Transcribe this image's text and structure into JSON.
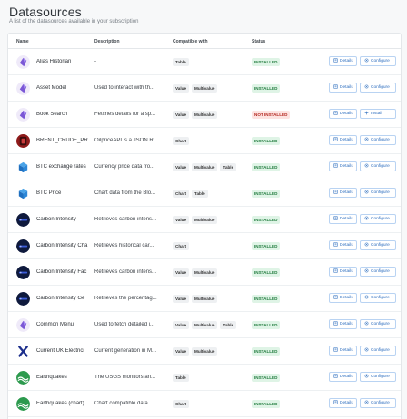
{
  "page": {
    "title": "Datasources",
    "subtitle": "A list of the datasources available in your subscription"
  },
  "columns": {
    "name": "Name",
    "description": "Description",
    "compatible": "Compatible with",
    "status": "Status"
  },
  "buttons": {
    "details": "Details",
    "configure": "Configure",
    "install": "Install"
  },
  "rows": [
    {
      "name": "Alias Historian",
      "description": "-",
      "compatible": [
        "Table"
      ],
      "status": "INSTALLED",
      "installed": true,
      "logo": "purple-gem-icon"
    },
    {
      "name": "Asset Model",
      "description": "Used to interact with th...",
      "compatible": [
        "Value",
        "Multivalue"
      ],
      "status": "INSTALLED",
      "installed": true,
      "logo": "purple-gem-icon"
    },
    {
      "name": "Book Search",
      "description": "Fetches details for a sp...",
      "compatible": [
        "Value",
        "Multivalue"
      ],
      "status": "NOT INSTALLED",
      "installed": false,
      "logo": "purple-gem-icon"
    },
    {
      "name": "BRENT_CRUDE_PRI",
      "description": "OilpriceAPI is a JSON R...",
      "compatible": [
        "Chart"
      ],
      "status": "INSTALLED",
      "installed": true,
      "logo": "oilprice-icon"
    },
    {
      "name": "BTC exchange rates",
      "description": "Currency price data fro...",
      "compatible": [
        "Value",
        "Multivalue",
        "Table"
      ],
      "status": "INSTALLED",
      "installed": true,
      "logo": "blue-cube-icon"
    },
    {
      "name": "BTC Price",
      "description": "Chart data from the Blo...",
      "compatible": [
        "Chart",
        "Table"
      ],
      "status": "INSTALLED",
      "installed": true,
      "logo": "blue-cube-icon"
    },
    {
      "name": "Carbon Intensity",
      "description": "Retrieves carbon intens...",
      "compatible": [
        "Value",
        "Multivalue"
      ],
      "status": "INSTALLED",
      "installed": true,
      "logo": "carbon-intensity-icon"
    },
    {
      "name": "Carbon Intensity Cha",
      "description": "Retrieves historical car...",
      "compatible": [
        "Chart"
      ],
      "status": "INSTALLED",
      "installed": true,
      "logo": "carbon-intensity-icon"
    },
    {
      "name": "Carbon Intensity Fac",
      "description": "Retrieves carbon intens...",
      "compatible": [
        "Value",
        "Multivalue"
      ],
      "status": "INSTALLED",
      "installed": true,
      "logo": "carbon-intensity-icon"
    },
    {
      "name": "Carbon Intensity Ge",
      "description": "Retrieves the percentag...",
      "compatible": [
        "Value",
        "Multivalue"
      ],
      "status": "INSTALLED",
      "installed": true,
      "logo": "carbon-intensity-icon"
    },
    {
      "name": "Common Menu",
      "description": "Used to fetch detailed i...",
      "compatible": [
        "Value",
        "Multivalue",
        "Table"
      ],
      "status": "INSTALLED",
      "installed": true,
      "logo": "purple-gem-icon"
    },
    {
      "name": "Current UK Electrici",
      "description": "Current generation in M...",
      "compatible": [
        "Value",
        "Multivalue"
      ],
      "status": "INSTALLED",
      "installed": true,
      "logo": "x-logo-icon"
    },
    {
      "name": "Earthquakes",
      "description": "The USGS monitors an...",
      "compatible": [
        "Table"
      ],
      "status": "INSTALLED",
      "installed": true,
      "logo": "usgs-icon"
    },
    {
      "name": "Earthquakes (chart)",
      "description": "Chart compatible data ...",
      "compatible": [
        "Chart"
      ],
      "status": "INSTALLED",
      "installed": true,
      "logo": "usgs-icon"
    }
  ]
}
